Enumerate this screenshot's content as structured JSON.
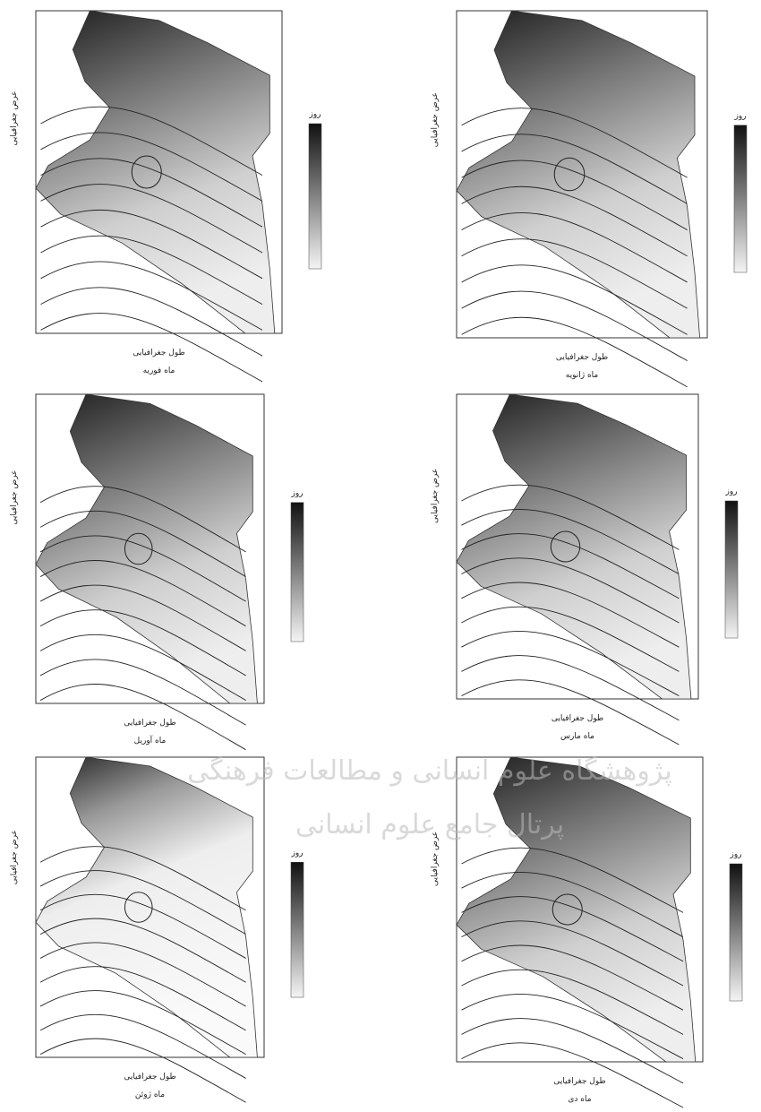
{
  "panels": [
    {
      "caption": "ماه فوریه",
      "x_label": "طول جغرافیایی",
      "y_label": "عرض جغرافیایی",
      "colorbar_label": "روز"
    },
    {
      "caption": "ماه ژانویه",
      "x_label": "طول جغرافیایی",
      "y_label": "عرض جغرافیایی",
      "colorbar_label": "روز"
    },
    {
      "caption": "ماه آوریل",
      "x_label": "طول جغرافیایی",
      "y_label": "عرض جغرافیایی",
      "colorbar_label": "روز"
    },
    {
      "caption": "ماه مارس",
      "x_label": "طول جغرافیایی",
      "y_label": "عرض جغرافیایی",
      "colorbar_label": "روز"
    },
    {
      "caption": "ماه ژوئن",
      "x_label": "طول جغرافیایی",
      "y_label": "عرض جغرافیایی",
      "colorbar_label": "روز"
    },
    {
      "caption": "ماه دی",
      "x_label": "طول جغرافیایی",
      "y_label": "عرض جغرافیایی",
      "colorbar_label": "روز"
    }
  ],
  "watermark": {
    "line1": "پژوهشگاه علوم انسانی و مطالعات فرهنگی",
    "line2": "پرتال جامع علوم انسانی"
  }
}
